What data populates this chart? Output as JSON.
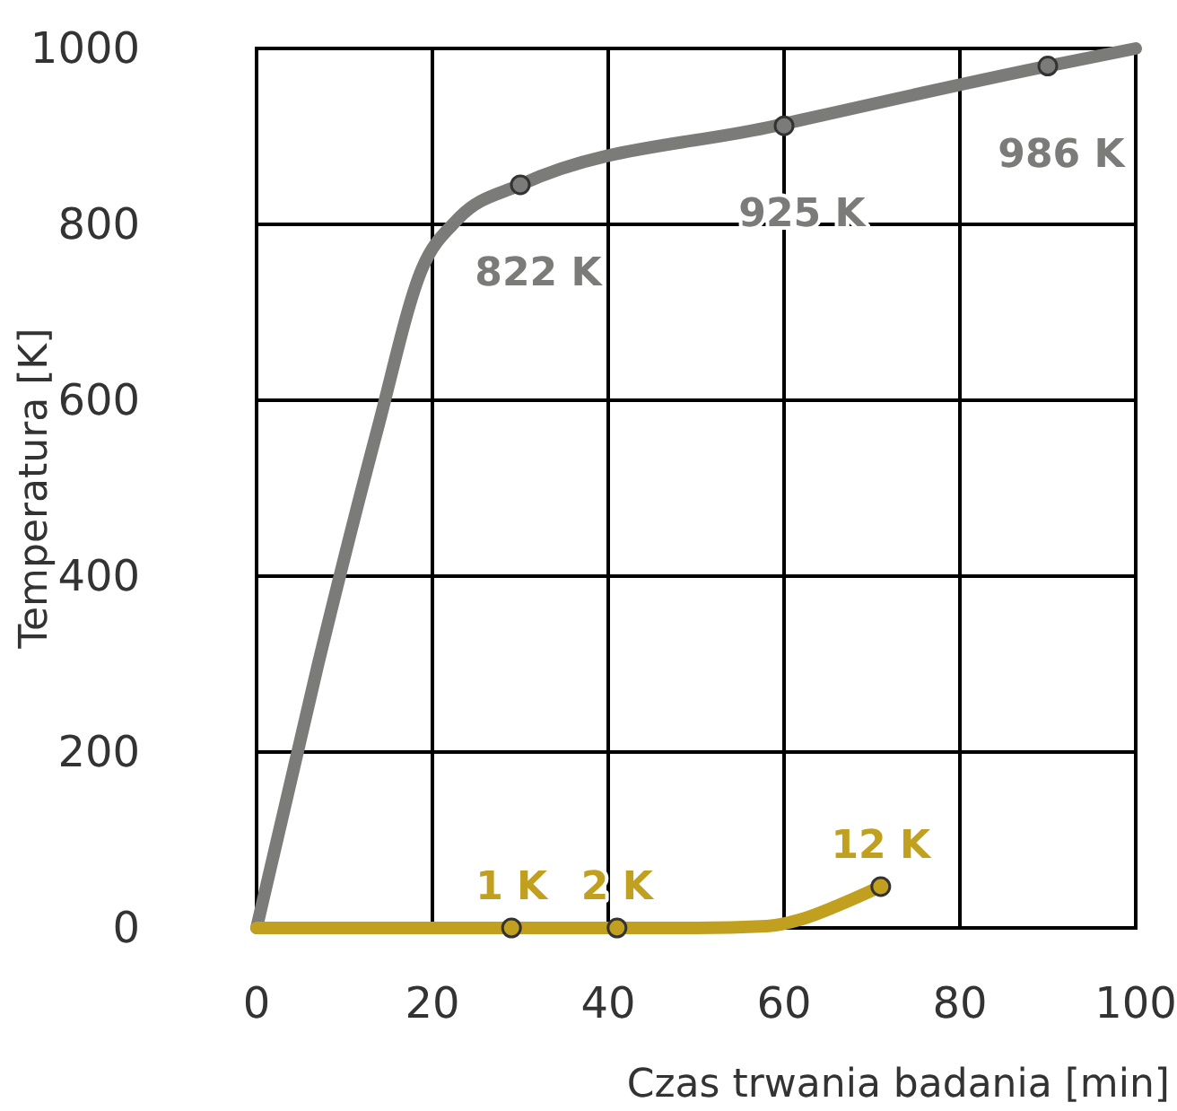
{
  "chart_data": {
    "type": "line",
    "xlabel": "Czas trwania badania [min]",
    "ylabel": "Temperatura [K]",
    "xlim": [
      0,
      100
    ],
    "ylim": [
      0,
      1000
    ],
    "xticks": [
      0,
      20,
      40,
      60,
      80,
      100
    ],
    "yticks": [
      0,
      200,
      400,
      600,
      800,
      1000
    ],
    "grid": true,
    "marker": "none",
    "line_style": "solid",
    "series": [
      {
        "color": "#7b7b79",
        "x": [
          0,
          7,
          13.7,
          18.8,
          22.9,
          30,
          59,
          90,
          100
        ],
        "values": [
          0,
          300,
          565,
          749,
          806,
          845,
          912,
          980,
          1000
        ]
      },
      {
        "color": "#c0a01e",
        "x": [
          0,
          50,
          58,
          62,
          66,
          71
        ],
        "values": [
          0,
          0,
          2,
          10,
          25,
          47
        ]
      }
    ],
    "annotations": [
      {
        "text": "822 K",
        "x": 30,
        "y": 845
      },
      {
        "text": "925 K",
        "x": 60,
        "y": 912
      },
      {
        "text": "986 K",
        "x": 90,
        "y": 980
      },
      {
        "text": "1 K",
        "x": 29,
        "y": 0
      },
      {
        "text": "2 K",
        "x": 41,
        "y": 0
      },
      {
        "text": "12 K",
        "x": 71,
        "y": 47
      }
    ]
  }
}
